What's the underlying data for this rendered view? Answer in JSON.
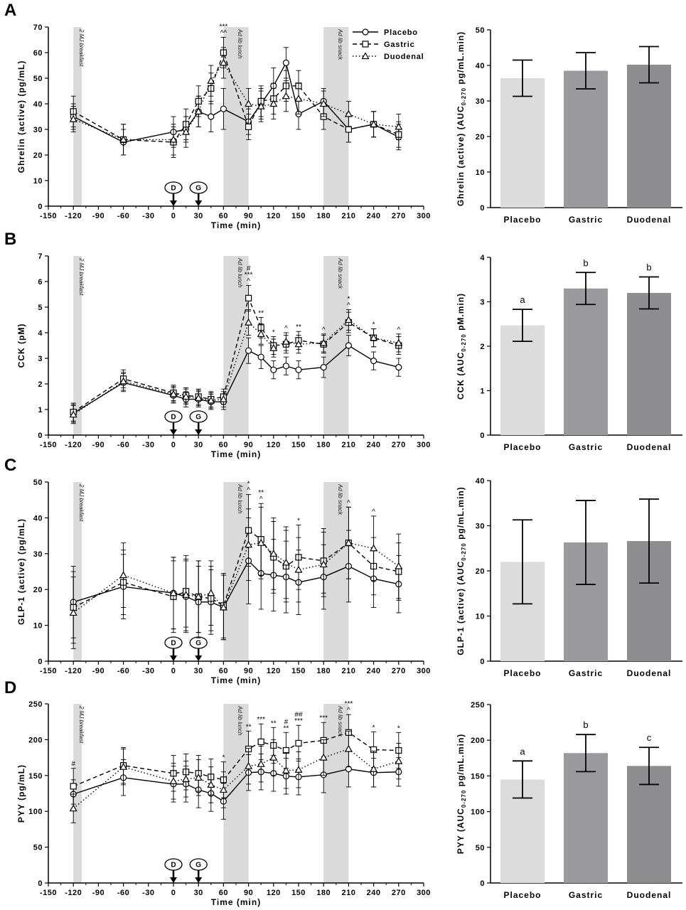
{
  "legend": [
    {
      "name": "Placebo",
      "style": "solid",
      "marker": "circle"
    },
    {
      "name": "Gastric",
      "style": "dashed",
      "marker": "square"
    },
    {
      "name": "Duodenal",
      "style": "dotted",
      "marker": "triangle"
    }
  ],
  "colors": {
    "placebo_bar": "#dcdcdc",
    "gastric_bar": "#9a9a9e",
    "duodenal_bar": "#8e8e90",
    "band": "#dadada"
  },
  "bands": [
    {
      "from": -120,
      "to": -110,
      "label": "2 MJ breakfast"
    },
    {
      "from": 60,
      "to": 90,
      "label": "Ad lib lunch"
    },
    {
      "from": 180,
      "to": 210,
      "label": "Ad lib snack"
    }
  ],
  "dose_markers": [
    {
      "x": 0,
      "label": "D"
    },
    {
      "x": 30,
      "label": "G"
    }
  ],
  "time_axis": {
    "xlabel": "Time (min)",
    "ticks": [
      -150,
      -120,
      -90,
      -60,
      -30,
      0,
      30,
      60,
      90,
      120,
      150,
      180,
      210,
      240,
      270,
      300
    ],
    "range": [
      -150,
      300
    ]
  },
  "chart_data": [
    {
      "panel": "A",
      "type": "line",
      "ylabel": "Ghrelin (active) (pg/mL)",
      "xlabel": "Time (min)",
      "ylim": [
        0,
        70
      ],
      "yticks": [
        0,
        10,
        20,
        30,
        40,
        50,
        60,
        70
      ],
      "x": [
        -120,
        -60,
        0,
        15,
        30,
        45,
        60,
        90,
        105,
        120,
        135,
        150,
        180,
        210,
        240,
        270
      ],
      "series": [
        {
          "name": "Placebo",
          "values": [
            35,
            25,
            29,
            30,
            37,
            35,
            38,
            33,
            40,
            47,
            56,
            36,
            41,
            30,
            32,
            27
          ],
          "err": [
            5,
            5,
            6,
            5,
            6,
            6,
            8,
            5,
            6,
            7,
            6,
            6,
            5,
            5,
            5,
            5
          ]
        },
        {
          "name": "Gastric",
          "values": [
            37,
            26,
            25,
            32,
            41,
            46,
            60,
            31,
            41,
            42,
            47,
            47,
            35,
            30,
            32,
            28
          ],
          "err": [
            6,
            6,
            6,
            6,
            6,
            6,
            6,
            5,
            6,
            6,
            6,
            6,
            5,
            5,
            5,
            5
          ]
        },
        {
          "name": "Duodenal",
          "values": [
            34,
            26,
            26,
            29,
            37,
            49,
            56,
            40,
            39,
            40,
            43,
            42,
            40,
            36,
            32,
            31
          ],
          "err": [
            5,
            6,
            6,
            6,
            6,
            6,
            6,
            6,
            6,
            6,
            6,
            6,
            5,
            5,
            5,
            5
          ]
        }
      ],
      "annotations": [
        {
          "x": 60,
          "text": "***"
        },
        {
          "x": 60,
          "text": "^^"
        }
      ]
    },
    {
      "panel": "A",
      "type": "bar",
      "ylabel": "Ghrelin (active) (AUC0-270 pg/mL.min)",
      "ylim": [
        0,
        50
      ],
      "yticks": [
        0,
        10,
        20,
        30,
        40,
        50
      ],
      "categories": [
        "Placebo",
        "Gastric",
        "Duodenal"
      ],
      "values": [
        36.4,
        38.5,
        40.2
      ],
      "err": [
        5.1,
        5.1,
        5.1
      ],
      "letters": [
        "",
        "",
        ""
      ]
    },
    {
      "panel": "B",
      "type": "line",
      "ylabel": "CCK (pM)",
      "xlabel": "Time (min)",
      "ylim": [
        0,
        7
      ],
      "yticks": [
        0,
        1,
        2,
        3,
        4,
        5,
        6,
        7
      ],
      "x": [
        -120,
        -60,
        0,
        15,
        30,
        45,
        60,
        90,
        105,
        120,
        135,
        150,
        180,
        210,
        240,
        270
      ],
      "series": [
        {
          "name": "Placebo",
          "values": [
            0.85,
            2.05,
            1.55,
            1.4,
            1.4,
            1.3,
            1.3,
            3.3,
            3.05,
            2.55,
            2.7,
            2.55,
            2.65,
            3.5,
            2.9,
            2.65
          ],
          "err": [
            0.35,
            0.35,
            0.3,
            0.3,
            0.3,
            0.3,
            0.3,
            0.5,
            0.45,
            0.35,
            0.35,
            0.35,
            0.4,
            0.4,
            0.35,
            0.35
          ]
        },
        {
          "name": "Gastric",
          "values": [
            0.9,
            2.2,
            1.65,
            1.55,
            1.5,
            1.4,
            1.5,
            5.35,
            4.2,
            3.5,
            3.55,
            3.7,
            3.55,
            4.4,
            3.8,
            3.5
          ],
          "err": [
            0.35,
            0.35,
            0.3,
            0.3,
            0.3,
            0.3,
            0.3,
            0.5,
            0.4,
            0.35,
            0.35,
            0.35,
            0.35,
            0.4,
            0.35,
            0.35
          ]
        },
        {
          "name": "Duodenal",
          "values": [
            0.8,
            2.1,
            1.6,
            1.5,
            1.45,
            1.35,
            1.4,
            4.4,
            3.95,
            3.4,
            3.65,
            3.55,
            3.6,
            4.5,
            3.8,
            3.6
          ],
          "err": [
            0.35,
            0.35,
            0.3,
            0.3,
            0.3,
            0.3,
            0.3,
            0.5,
            0.4,
            0.35,
            0.35,
            0.35,
            0.35,
            0.4,
            0.35,
            0.35
          ]
        }
      ],
      "annotations": [
        {
          "x": 90,
          "text": "#"
        },
        {
          "x": 90,
          "text": "***"
        },
        {
          "x": 90,
          "text": "^"
        },
        {
          "x": 105,
          "text": "**"
        },
        {
          "x": 120,
          "text": "*"
        },
        {
          "x": 135,
          "text": "^"
        },
        {
          "x": 150,
          "text": "**"
        },
        {
          "x": 180,
          "text": "^"
        },
        {
          "x": 210,
          "text": "*"
        },
        {
          "x": 210,
          "text": "^"
        },
        {
          "x": 240,
          "text": "*"
        },
        {
          "x": 270,
          "text": "^"
        }
      ]
    },
    {
      "panel": "B",
      "type": "bar",
      "ylabel": "CCK (AUC0-270 pM.min)",
      "ylim": [
        0,
        4
      ],
      "yticks": [
        0,
        1,
        2,
        3,
        4
      ],
      "categories": [
        "Placebo",
        "Gastric",
        "Duodenal"
      ],
      "values": [
        2.47,
        3.3,
        3.2
      ],
      "err": [
        0.36,
        0.36,
        0.36
      ],
      "letters": [
        "a",
        "b",
        "b"
      ]
    },
    {
      "panel": "C",
      "type": "line",
      "ylabel": "GLP-1 (active) (pg/mL)",
      "xlabel": "Time (min)",
      "ylim": [
        0,
        50
      ],
      "yticks": [
        0,
        10,
        20,
        30,
        40,
        50
      ],
      "x": [
        -120,
        -60,
        0,
        15,
        30,
        45,
        60,
        90,
        105,
        120,
        135,
        150,
        180,
        210,
        240,
        270
      ],
      "series": [
        {
          "name": "Placebo",
          "values": [
            16.5,
            20.8,
            19,
            18,
            16.5,
            16.5,
            15,
            28,
            24.5,
            24,
            23.5,
            22,
            23.5,
            26.5,
            23,
            21.5
          ],
          "err": [
            10,
            9,
            10,
            10,
            10,
            9,
            9,
            12,
            10,
            10,
            10,
            9,
            9,
            10,
            8,
            8
          ]
        },
        {
          "name": "Gastric",
          "values": [
            15,
            22,
            18,
            19.5,
            18,
            17.5,
            15.5,
            36.5,
            34,
            29,
            26.5,
            29,
            28,
            33,
            26.5,
            25
          ],
          "err": [
            10,
            9,
            10,
            10,
            10,
            9,
            9,
            10,
            10,
            10,
            10,
            9,
            9,
            10,
            8,
            8
          ]
        },
        {
          "name": "Duodenal",
          "values": [
            13.5,
            24,
            19,
            18.5,
            18,
            19,
            15,
            32.5,
            33,
            30,
            27.5,
            25.5,
            27,
            33,
            31.5,
            26.5
          ],
          "err": [
            10,
            9,
            10,
            10,
            10,
            9,
            9,
            10,
            10,
            10,
            10,
            9,
            9,
            10,
            9,
            9
          ]
        }
      ],
      "annotations": [
        {
          "x": 90,
          "text": "*"
        },
        {
          "x": 90,
          "text": "^"
        },
        {
          "x": 105,
          "text": "**"
        },
        {
          "x": 105,
          "text": "^"
        },
        {
          "x": 150,
          "text": "*"
        },
        {
          "x": 210,
          "text": "^"
        },
        {
          "x": 240,
          "text": "^"
        }
      ]
    },
    {
      "panel": "C",
      "type": "bar",
      "ylabel": "GLP-1 (active) (AUC0-270 pg/mL.min)",
      "ylim": [
        0,
        40
      ],
      "yticks": [
        0,
        10,
        20,
        30,
        40
      ],
      "categories": [
        "Placebo",
        "Gastric",
        "Duodenal"
      ],
      "values": [
        22,
        26.3,
        26.6
      ],
      "err": [
        9.3,
        9.3,
        9.3
      ],
      "letters": [
        "",
        "",
        ""
      ]
    },
    {
      "panel": "D",
      "type": "line",
      "ylabel": "PYY (pg/mL)",
      "xlabel": "Time (min)",
      "ylim": [
        0,
        250
      ],
      "yticks": [
        0,
        50,
        100,
        150,
        200,
        250
      ],
      "x": [
        -120,
        -60,
        0,
        15,
        30,
        45,
        60,
        90,
        105,
        120,
        135,
        150,
        180,
        210,
        240,
        270
      ],
      "series": [
        {
          "name": "Placebo",
          "values": [
            124,
            147,
            138,
            138,
            130,
            125,
            114,
            154,
            155,
            153,
            149,
            148,
            151,
            159,
            154,
            155
          ],
          "err": [
            20,
            25,
            25,
            25,
            25,
            25,
            25,
            25,
            25,
            25,
            25,
            25,
            25,
            25,
            20,
            20
          ]
        },
        {
          "name": "Gastric",
          "values": [
            135,
            164,
            153,
            155,
            153,
            148,
            144,
            187,
            197,
            192,
            185,
            195,
            199,
            210,
            186,
            185
          ],
          "err": [
            25,
            25,
            25,
            25,
            25,
            25,
            25,
            25,
            25,
            25,
            25,
            25,
            25,
            25,
            25,
            25
          ]
        },
        {
          "name": "Duodenal",
          "values": [
            104,
            162,
            142,
            145,
            147,
            137,
            130,
            163,
            166,
            175,
            157,
            158,
            175,
            187,
            159,
            170
          ],
          "err": [
            20,
            25,
            25,
            25,
            25,
            25,
            25,
            25,
            25,
            25,
            25,
            25,
            25,
            25,
            25,
            25
          ]
        }
      ],
      "annotations": [
        {
          "x": -120,
          "text": "#"
        },
        {
          "x": 60,
          "text": "*"
        },
        {
          "x": 90,
          "text": "**"
        },
        {
          "x": 105,
          "text": "***"
        },
        {
          "x": 120,
          "text": "**"
        },
        {
          "x": 135,
          "text": "#"
        },
        {
          "x": 135,
          "text": "**"
        },
        {
          "x": 150,
          "text": "##"
        },
        {
          "x": 150,
          "text": "***"
        },
        {
          "x": 180,
          "text": "***"
        },
        {
          "x": 210,
          "text": "***"
        },
        {
          "x": 210,
          "text": "^"
        },
        {
          "x": 240,
          "text": "*"
        },
        {
          "x": 270,
          "text": "*"
        }
      ]
    },
    {
      "panel": "D",
      "type": "bar",
      "ylabel": "PYY (AUC0-270 pg/mL.min)",
      "ylim": [
        0,
        250
      ],
      "yticks": [
        0,
        50,
        100,
        150,
        200,
        250
      ],
      "categories": [
        "Placebo",
        "Gastric",
        "Duodenal"
      ],
      "values": [
        145,
        182,
        164
      ],
      "err": [
        26,
        26,
        26
      ],
      "letters": [
        "a",
        "b",
        "c"
      ]
    }
  ]
}
